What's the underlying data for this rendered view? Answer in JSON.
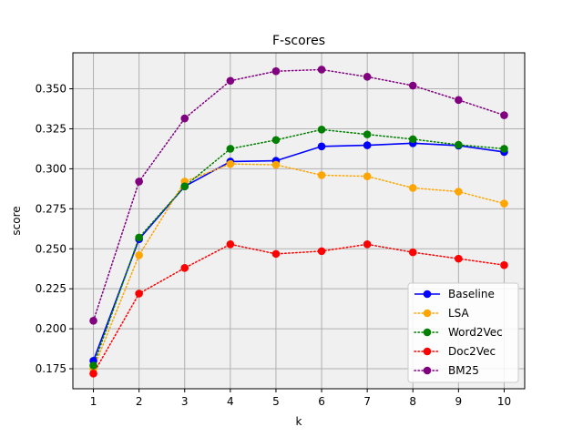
{
  "chart_data": {
    "type": "line",
    "title": "F-scores",
    "xlabel": "k",
    "ylabel": "score",
    "x": [
      1,
      2,
      3,
      4,
      5,
      6,
      7,
      8,
      9,
      10
    ],
    "xlim": [
      0.55,
      10.45
    ],
    "ylim": [
      0.1625,
      0.3725
    ],
    "yticks": [
      0.175,
      0.2,
      0.225,
      0.25,
      0.275,
      0.3,
      0.325,
      0.35
    ],
    "ytick_labels": [
      "0.175",
      "0.200",
      "0.225",
      "0.250",
      "0.275",
      "0.300",
      "0.325",
      "0.350"
    ],
    "xtick_labels": [
      "1",
      "2",
      "3",
      "4",
      "5",
      "6",
      "7",
      "8",
      "9",
      "10"
    ],
    "grid": true,
    "legend_position": "lower-right",
    "plot_background": "#f0f0f0",
    "series": [
      {
        "name": "Baseline",
        "color": "#0000ff",
        "style": "solid",
        "values": [
          0.18,
          0.256,
          0.289,
          0.3045,
          0.305,
          0.314,
          0.3147,
          0.316,
          0.3145,
          0.3105
        ]
      },
      {
        "name": "LSA",
        "color": "#ffa500",
        "style": "dotted",
        "values": [
          0.175,
          0.246,
          0.292,
          0.303,
          0.3025,
          0.296,
          0.2953,
          0.288,
          0.2857,
          0.2783
        ]
      },
      {
        "name": "Word2Vec",
        "color": "#008000",
        "style": "dotted",
        "values": [
          0.177,
          0.257,
          0.289,
          0.3125,
          0.318,
          0.3245,
          0.3215,
          0.3185,
          0.315,
          0.3125
        ]
      },
      {
        "name": "Doc2Vec",
        "color": "#ff0000",
        "style": "dotted",
        "values": [
          0.172,
          0.222,
          0.238,
          0.2528,
          0.2468,
          0.2485,
          0.2528,
          0.2478,
          0.2438,
          0.2398
        ]
      },
      {
        "name": "BM25",
        "color": "#800080",
        "style": "dotted",
        "values": [
          0.205,
          0.292,
          0.3315,
          0.355,
          0.361,
          0.362,
          0.3575,
          0.352,
          0.343,
          0.3335
        ]
      }
    ]
  }
}
